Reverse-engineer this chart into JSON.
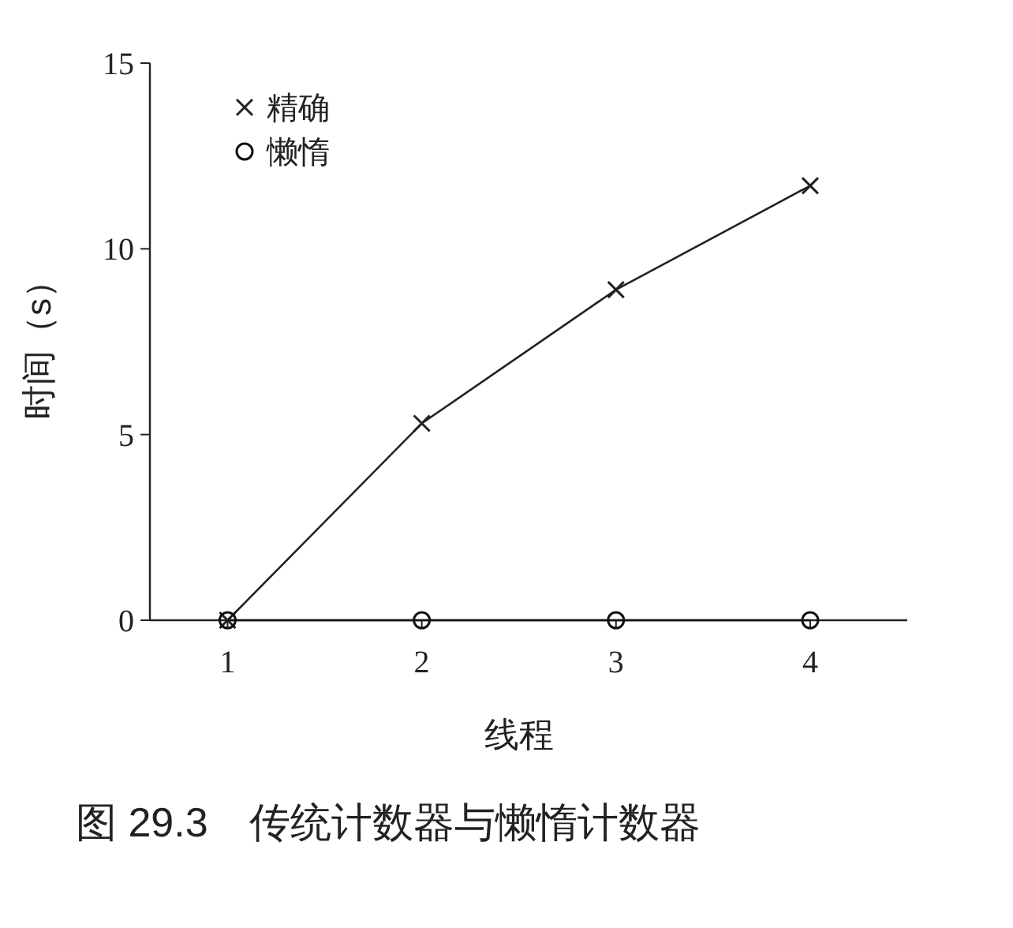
{
  "chart_data": {
    "type": "line",
    "xlabel": "线程",
    "ylabel": "时间（s）",
    "x": [
      1,
      2,
      3,
      4
    ],
    "xlim": [
      0.6,
      4.5
    ],
    "xticks": [
      1,
      2,
      3,
      4
    ],
    "ylim": [
      0,
      15
    ],
    "yticks": [
      0,
      5,
      10,
      15
    ],
    "legend": "top left",
    "line_style": "solid",
    "series": [
      {
        "name": "精确",
        "color": "#222222",
        "marker": "cross",
        "values": [
          0,
          5.3,
          8.9,
          11.7
        ]
      },
      {
        "name": "懒惰",
        "color": "#111111",
        "marker": "circle",
        "values": [
          0,
          0,
          0,
          0
        ]
      }
    ],
    "annotations": [
      "图 29.3　传统计数器与懒惰计数器"
    ]
  }
}
